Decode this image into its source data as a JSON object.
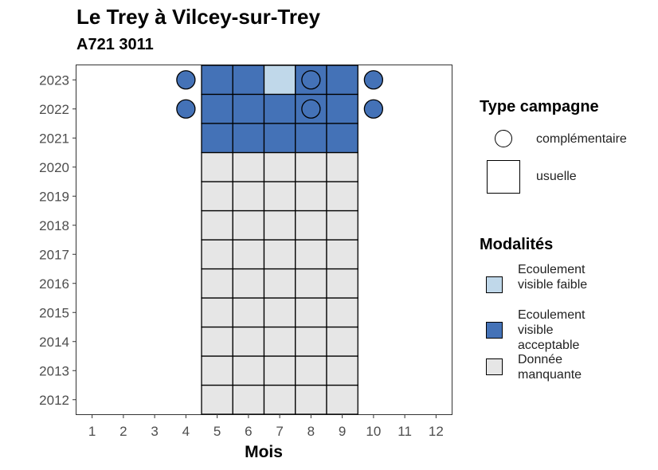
{
  "chart_data": {
    "type": "heatmap",
    "title": "Le Trey à Vilcey-sur-Trey",
    "subtitle": "A721 3011",
    "xlabel": "Mois",
    "ylabel": "",
    "x_ticks": [
      1,
      2,
      3,
      4,
      5,
      6,
      7,
      8,
      9,
      10,
      11,
      12
    ],
    "y_ticks": [
      2012,
      2013,
      2014,
      2015,
      2016,
      2017,
      2018,
      2019,
      2020,
      2021,
      2022,
      2023
    ],
    "colors": {
      "Ecoulement visible faible": "#c0d8ea",
      "Ecoulement visible acceptable": "#4472b7",
      "Donnée manquante": "#e6e6e6"
    },
    "usuelle": [
      {
        "year": 2023,
        "month": 5,
        "modalite": "Ecoulement visible acceptable"
      },
      {
        "year": 2023,
        "month": 6,
        "modalite": "Ecoulement visible acceptable"
      },
      {
        "year": 2023,
        "month": 7,
        "modalite": "Ecoulement visible faible"
      },
      {
        "year": 2023,
        "month": 8,
        "modalite": "Ecoulement visible acceptable"
      },
      {
        "year": 2023,
        "month": 9,
        "modalite": "Ecoulement visible acceptable"
      },
      {
        "year": 2022,
        "month": 5,
        "modalite": "Ecoulement visible acceptable"
      },
      {
        "year": 2022,
        "month": 6,
        "modalite": "Ecoulement visible acceptable"
      },
      {
        "year": 2022,
        "month": 7,
        "modalite": "Ecoulement visible acceptable"
      },
      {
        "year": 2022,
        "month": 8,
        "modalite": "Ecoulement visible acceptable"
      },
      {
        "year": 2022,
        "month": 9,
        "modalite": "Ecoulement visible acceptable"
      },
      {
        "year": 2021,
        "month": 5,
        "modalite": "Ecoulement visible acceptable"
      },
      {
        "year": 2021,
        "month": 6,
        "modalite": "Ecoulement visible acceptable"
      },
      {
        "year": 2021,
        "month": 7,
        "modalite": "Ecoulement visible acceptable"
      },
      {
        "year": 2021,
        "month": 8,
        "modalite": "Ecoulement visible acceptable"
      },
      {
        "year": 2021,
        "month": 9,
        "modalite": "Ecoulement visible acceptable"
      }
    ],
    "missing": {
      "years": [
        2012,
        2020
      ],
      "months": [
        5,
        9
      ],
      "modalite": "Donnée manquante"
    },
    "complementaire": [
      {
        "year": 2023,
        "month": 4,
        "modalite": "Ecoulement visible acceptable"
      },
      {
        "year": 2023,
        "month": 8,
        "modalite": "Ecoulement visible acceptable"
      },
      {
        "year": 2023,
        "month": 10,
        "modalite": "Ecoulement visible acceptable"
      },
      {
        "year": 2022,
        "month": 4,
        "modalite": "Ecoulement visible acceptable"
      },
      {
        "year": 2022,
        "month": 8,
        "modalite": "Ecoulement visible acceptable"
      },
      {
        "year": 2022,
        "month": 10,
        "modalite": "Ecoulement visible acceptable"
      }
    ],
    "legend": {
      "type_title": "Type campagne",
      "type_items": [
        "complémentaire",
        "usuelle"
      ],
      "modalites_title": "Modalités",
      "modalites_items": [
        "Ecoulement visible faible",
        "Ecoulement visible acceptable",
        "Donnée manquante"
      ]
    }
  }
}
